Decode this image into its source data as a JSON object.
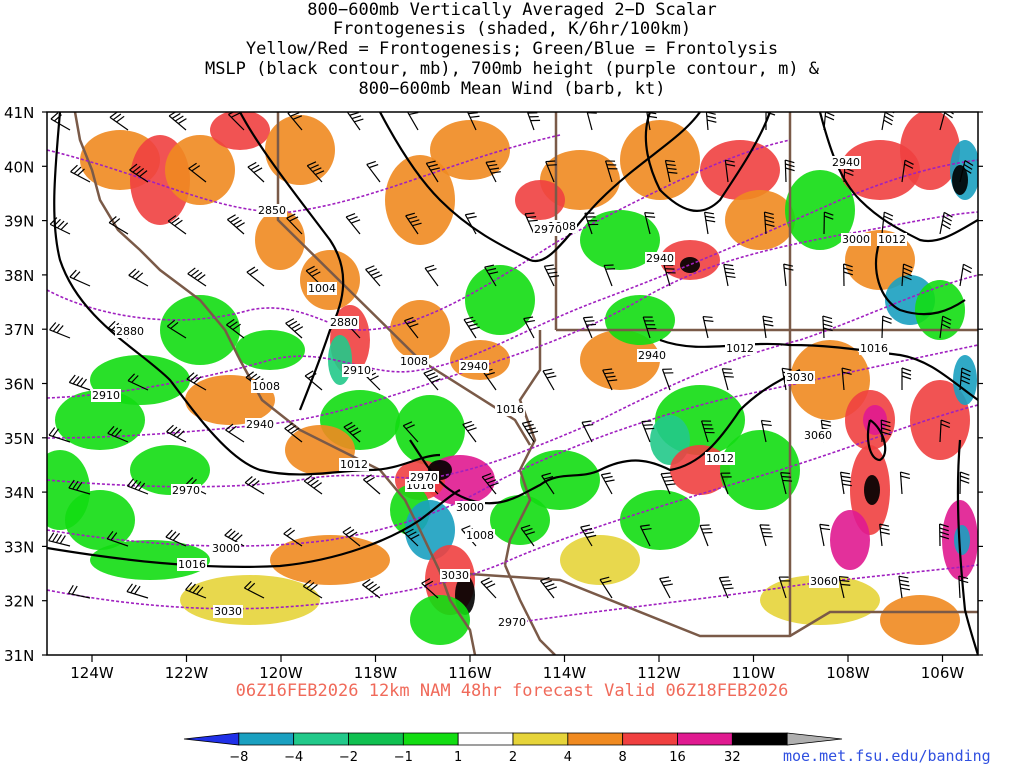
{
  "title": {
    "line1": "800−600mb Vertically Averaged 2−D Scalar",
    "line2": "Frontogenesis (shaded, K/6hr/100km)",
    "line3": "Yellow/Red = Frontogenesis;  Green/Blue = Frontolysis",
    "line4": "MSLP (black contour, mb), 700mb height (purple contour, m) &",
    "line5": "800−600mb Mean Wind (barb, kt)"
  },
  "valid_line": "06Z16FEB2026 12km NAM 48hr forecast Valid 06Z18FEB2026",
  "credit": "moe.met.fsu.edu/banding",
  "axes": {
    "lat_labels": [
      "41N",
      "40N",
      "39N",
      "38N",
      "37N",
      "36N",
      "35N",
      "34N",
      "33N",
      "32N",
      "31N"
    ],
    "lon_labels": [
      "124W",
      "122W",
      "120W",
      "118W",
      "116W",
      "114W",
      "112W",
      "110W",
      "108W",
      "106W"
    ]
  },
  "colorbar": {
    "labels": [
      "−8",
      "−4",
      "−2",
      "−1",
      "1",
      "2",
      "4",
      "8",
      "16",
      "32"
    ],
    "colors": [
      "#2030e8",
      "#1aa0c0",
      "#22c98a",
      "#10c050",
      "#12dd12",
      "#ffffff",
      "#e6d43a",
      "#f08a20",
      "#f04040",
      "#e01a90",
      "#000000",
      "#b0b0b0"
    ]
  },
  "colors": {
    "valid_text": "#f06a5a",
    "credit_text": "#3050e0",
    "height_contour": "#a020c0",
    "state_border": "#7a5a48",
    "mslp_contour": "#000000"
  },
  "mslp_labels": [
    "1004",
    "1008",
    "1008",
    "1008",
    "1012",
    "1012",
    "1012",
    "1016",
    "1016",
    "1016",
    "1016",
    "1008",
    "1012"
  ],
  "height_labels": [
    "2850",
    "2880",
    "2880",
    "2910",
    "2910",
    "2940",
    "2940",
    "2940",
    "2940",
    "2970",
    "2970",
    "2970",
    "3000",
    "3000",
    "3000",
    "3030",
    "3030",
    "3030",
    "3060",
    "3060",
    "2940",
    "2970"
  ]
}
